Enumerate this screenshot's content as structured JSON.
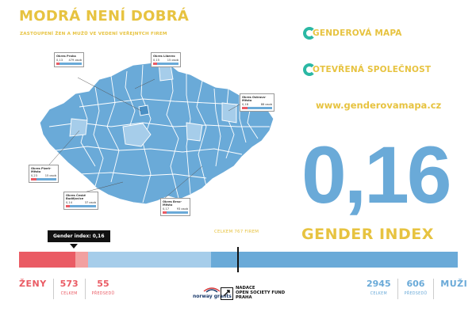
{
  "header": {
    "title": "MODRÁ NENÍ DOBRÁ",
    "subtitle": "ZASTOUPENÍ ŽEN A MUŽŮ VE VEDENÍ VEŘEJNÝCH FIREM"
  },
  "brands": [
    {
      "label": "GENDEROVÁ MAPA"
    },
    {
      "label": "OTEVŘENÁ SPOLEČNOST"
    }
  ],
  "website": "www.genderovamapa.cz",
  "index": {
    "value": "0,16",
    "label": "GENDER INDEX",
    "tooltip": "Gender index: 0,16",
    "total": "CELKEM 767 FIREM"
  },
  "bar": {
    "women_total_fraction": 0.16,
    "women_board_fraction": 0.03,
    "men_board_fraction": 0.28,
    "colors": {
      "women_dark": "#ea5b64",
      "women_light": "#f2a0a0",
      "men_light": "#a6cdea",
      "men_dark": "#6aaad8"
    }
  },
  "women": {
    "label": "ŽENY",
    "total": "573",
    "total_caption": "CELKEM",
    "board": "55",
    "board_caption": "PŘEDSEDŮ"
  },
  "men": {
    "label": "MUŽI",
    "total": "2945",
    "total_caption": "CELKEM",
    "board": "606",
    "board_caption": "PŘEDSEDŮ"
  },
  "callouts": [
    {
      "name": "Okres Praha",
      "index": "0,13",
      "count": "479 osob"
    },
    {
      "name": "Okres Liberec",
      "index": "0,15",
      "count": "15 osob"
    },
    {
      "name": "Okres Ostrava-Město",
      "index": "0,18",
      "count": "88 osob"
    },
    {
      "name": "Okres Plzeň-Město",
      "index": "0,23",
      "count": "15 osob"
    },
    {
      "name": "Okres České Budějovice",
      "index": "0,14",
      "count": "37 osob"
    },
    {
      "name": "Okres Brno-Město",
      "index": "0,17",
      "count": "93 osob"
    }
  ],
  "logos": {
    "norway": "norway grants",
    "osf": [
      "NADACE",
      "OPEN SOCIETY FUND",
      "PRAHA"
    ]
  },
  "colors": {
    "yellow": "#e7c340",
    "blue": "#6aaad8",
    "teal": "#2bb8a4",
    "red": "#ea5b64"
  }
}
